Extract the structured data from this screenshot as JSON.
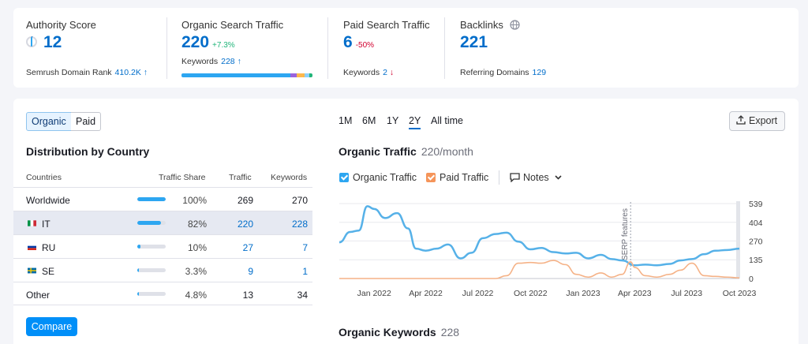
{
  "metrics": {
    "authority": {
      "label": "Authority Score",
      "value": "12",
      "sub_label": "Semrush Domain Rank",
      "sub_value": "410.2K",
      "sub_arrow": "↑"
    },
    "organic": {
      "label": "Organic Search Traffic",
      "value": "220",
      "delta": "+7.3%",
      "sub_label": "Keywords",
      "sub_value": "228",
      "sub_arrow": "↑"
    },
    "paid": {
      "label": "Paid Search Traffic",
      "value": "6",
      "delta": "-50%",
      "sub_label": "Keywords",
      "sub_value": "2",
      "sub_arrow": "↓"
    },
    "backlinks": {
      "label": "Backlinks",
      "value": "221",
      "sub_label": "Referring Domains",
      "sub_value": "129"
    }
  },
  "toggle": {
    "organic": "Organic",
    "paid": "Paid"
  },
  "distribution": {
    "title": "Distribution by Country",
    "columns": {
      "countries": "Countries",
      "share": "Traffic Share",
      "traffic": "Traffic",
      "keywords": "Keywords"
    },
    "rows": [
      {
        "name": "Worldwide",
        "share": "100%",
        "fill": 1.0,
        "traffic": "269",
        "keywords": "270"
      },
      {
        "name": "IT",
        "share": "82%",
        "fill": 0.82,
        "traffic": "220",
        "keywords": "228"
      },
      {
        "name": "RU",
        "share": "10%",
        "fill": 0.1,
        "traffic": "27",
        "keywords": "7"
      },
      {
        "name": "SE",
        "share": "3.3%",
        "fill": 0.033,
        "traffic": "9",
        "keywords": "1"
      },
      {
        "name": "Other",
        "share": "4.8%",
        "fill": 0.048,
        "traffic": "13",
        "keywords": "34"
      }
    ],
    "compare_label": "Compare"
  },
  "periods": [
    "1M",
    "6M",
    "1Y",
    "2Y",
    "All time"
  ],
  "active_period": "2Y",
  "export_label": "Export",
  "traffic_chart": {
    "title": "Organic Traffic",
    "subtitle": "220/month",
    "legend": {
      "organic": "Organic Traffic",
      "paid": "Paid Traffic",
      "notes": "Notes"
    },
    "annotation": "SERP features"
  },
  "keywords_section": {
    "title": "Organic Keywords",
    "count": "228"
  },
  "colors": {
    "accent": "#006dca",
    "organic_line": "#56b1e8",
    "paid_line": "#f5b287",
    "positive": "#21b57a",
    "negative": "#d1002f"
  },
  "chart_data": {
    "type": "line",
    "x_ticks": [
      "Jan 2022",
      "Apr 2022",
      "Jul 2022",
      "Oct 2022",
      "Jan 2023",
      "Apr 2023",
      "Jul 2023",
      "Oct 2023"
    ],
    "y_ticks": [
      539,
      404,
      270,
      135,
      0
    ],
    "ylim": [
      0,
      539
    ],
    "series": [
      {
        "name": "Organic Traffic",
        "color": "#56b1e8",
        "points": [
          [
            "2021-11-01",
            260
          ],
          [
            "2021-11-20",
            335
          ],
          [
            "2021-12-05",
            345
          ],
          [
            "2021-12-20",
            520
          ],
          [
            "2022-01-01",
            500
          ],
          [
            "2022-01-20",
            435
          ],
          [
            "2022-02-10",
            470
          ],
          [
            "2022-03-01",
            360
          ],
          [
            "2022-03-15",
            215
          ],
          [
            "2022-04-01",
            200
          ],
          [
            "2022-04-20",
            215
          ],
          [
            "2022-05-10",
            245
          ],
          [
            "2022-06-01",
            145
          ],
          [
            "2022-06-20",
            185
          ],
          [
            "2022-07-10",
            290
          ],
          [
            "2022-08-01",
            320
          ],
          [
            "2022-08-20",
            330
          ],
          [
            "2022-09-10",
            265
          ],
          [
            "2022-10-01",
            210
          ],
          [
            "2022-10-20",
            220
          ],
          [
            "2022-11-10",
            190
          ],
          [
            "2022-12-01",
            180
          ],
          [
            "2022-12-20",
            185
          ],
          [
            "2023-01-10",
            145
          ],
          [
            "2023-02-01",
            170
          ],
          [
            "2023-02-20",
            140
          ],
          [
            "2023-03-10",
            130
          ],
          [
            "2023-04-01",
            95
          ],
          [
            "2023-04-20",
            100
          ],
          [
            "2023-05-10",
            95
          ],
          [
            "2023-06-01",
            105
          ],
          [
            "2023-06-20",
            130
          ],
          [
            "2023-07-10",
            140
          ],
          [
            "2023-08-01",
            175
          ],
          [
            "2023-08-20",
            200
          ],
          [
            "2023-09-10",
            205
          ],
          [
            "2023-10-01",
            215
          ]
        ]
      },
      {
        "name": "Paid Traffic",
        "color": "#f5b287",
        "points": [
          [
            "2021-11-01",
            0
          ],
          [
            "2022-08-01",
            0
          ],
          [
            "2022-08-20",
            20
          ],
          [
            "2022-09-10",
            110
          ],
          [
            "2022-10-01",
            115
          ],
          [
            "2022-10-20",
            110
          ],
          [
            "2022-11-10",
            130
          ],
          [
            "2022-12-01",
            100
          ],
          [
            "2022-12-20",
            30
          ],
          [
            "2023-01-10",
            10
          ],
          [
            "2023-02-01",
            40
          ],
          [
            "2023-02-20",
            10
          ],
          [
            "2023-03-10",
            30
          ],
          [
            "2023-03-25",
            120
          ],
          [
            "2023-04-01",
            80
          ],
          [
            "2023-04-20",
            20
          ],
          [
            "2023-05-10",
            10
          ],
          [
            "2023-06-01",
            30
          ],
          [
            "2023-06-20",
            60
          ],
          [
            "2023-07-10",
            110
          ],
          [
            "2023-08-01",
            20
          ],
          [
            "2023-08-20",
            15
          ],
          [
            "2023-09-10",
            10
          ],
          [
            "2023-10-01",
            5
          ]
        ]
      }
    ],
    "annotations": [
      {
        "x": "2023-03-25",
        "label": "SERP features"
      }
    ]
  }
}
